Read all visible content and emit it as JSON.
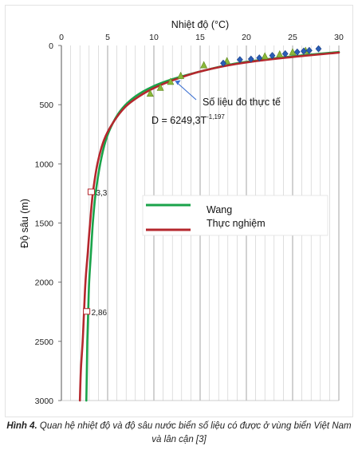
{
  "chart_data": {
    "type": "line",
    "xlabel": "Nhiệt độ (°C)",
    "ylabel": "Độ sâu (m)",
    "xlim": [
      0,
      30
    ],
    "ylim": [
      3000,
      0
    ],
    "x_ticks": [
      "0",
      "5",
      "10",
      "15",
      "20",
      "25",
      "30"
    ],
    "y_ticks": [
      "0",
      "500",
      "1000",
      "1500",
      "2000",
      "2500",
      "3000"
    ],
    "grid": "vertical",
    "legend_position": "middle-right",
    "series": [
      {
        "name": "Wang",
        "color": "#1aa34a",
        "points": [
          [
            2.7,
            3000
          ],
          [
            2.75,
            2750
          ],
          [
            2.8,
            2500
          ],
          [
            2.9,
            2250
          ],
          [
            3.0,
            2000
          ],
          [
            3.2,
            1750
          ],
          [
            3.4,
            1500
          ],
          [
            3.7,
            1250
          ],
          [
            4.2,
            1000
          ],
          [
            4.8,
            800
          ],
          [
            5.6,
            650
          ],
          [
            6.6,
            530
          ],
          [
            8.0,
            430
          ],
          [
            9.8,
            350
          ],
          [
            12.0,
            285
          ],
          [
            15.0,
            220
          ],
          [
            19.0,
            150
          ],
          [
            24.0,
            100
          ],
          [
            30.0,
            55
          ]
        ]
      },
      {
        "name": "Thực nghiệm",
        "color": "#b5272d",
        "points": [
          [
            2.0,
            3000
          ],
          [
            2.1,
            2750
          ],
          [
            2.3,
            2500
          ],
          [
            2.45,
            2250
          ],
          [
            2.6,
            2000
          ],
          [
            2.85,
            1750
          ],
          [
            3.1,
            1500
          ],
          [
            3.4,
            1250
          ],
          [
            3.9,
            1000
          ],
          [
            4.6,
            800
          ],
          [
            5.6,
            650
          ],
          [
            6.9,
            520
          ],
          [
            8.4,
            430
          ],
          [
            10.0,
            360
          ],
          [
            12.0,
            295
          ],
          [
            15.0,
            220
          ],
          [
            19.0,
            155
          ],
          [
            24.0,
            105
          ],
          [
            30.0,
            60
          ]
        ]
      }
    ],
    "observations_label": "Số liệu đo thực tế",
    "observations_diamonds": [
      [
        17.5,
        150
      ],
      [
        19.3,
        120
      ],
      [
        21.4,
        105
      ],
      [
        22.8,
        85
      ],
      [
        24.2,
        70
      ],
      [
        25.5,
        55
      ],
      [
        26.8,
        42
      ],
      [
        27.8,
        28
      ],
      [
        26.2,
        48
      ],
      [
        20.5,
        115
      ]
    ],
    "observations_triangles": [
      [
        9.6,
        410
      ],
      [
        10.7,
        360
      ],
      [
        11.8,
        310
      ],
      [
        12.9,
        260
      ],
      [
        15.4,
        170
      ],
      [
        17.9,
        135
      ],
      [
        22.0,
        95
      ],
      [
        23.6,
        78
      ],
      [
        25.0,
        60
      ],
      [
        26.4,
        48
      ]
    ],
    "annotations": [
      {
        "text": "3,3",
        "x": 3.4,
        "y": 1240
      },
      {
        "text": "2,86",
        "x": 2.9,
        "y": 2250
      }
    ],
    "equation": {
      "prefix": "D = 6249,3T",
      "exponent": "-1,197"
    }
  },
  "caption": {
    "label": "Hình 4.",
    "text": " Quan hệ nhiệt độ và độ sâu nước biển số liệu có được ở vùng biển Việt Nam và lân cận [3]"
  }
}
